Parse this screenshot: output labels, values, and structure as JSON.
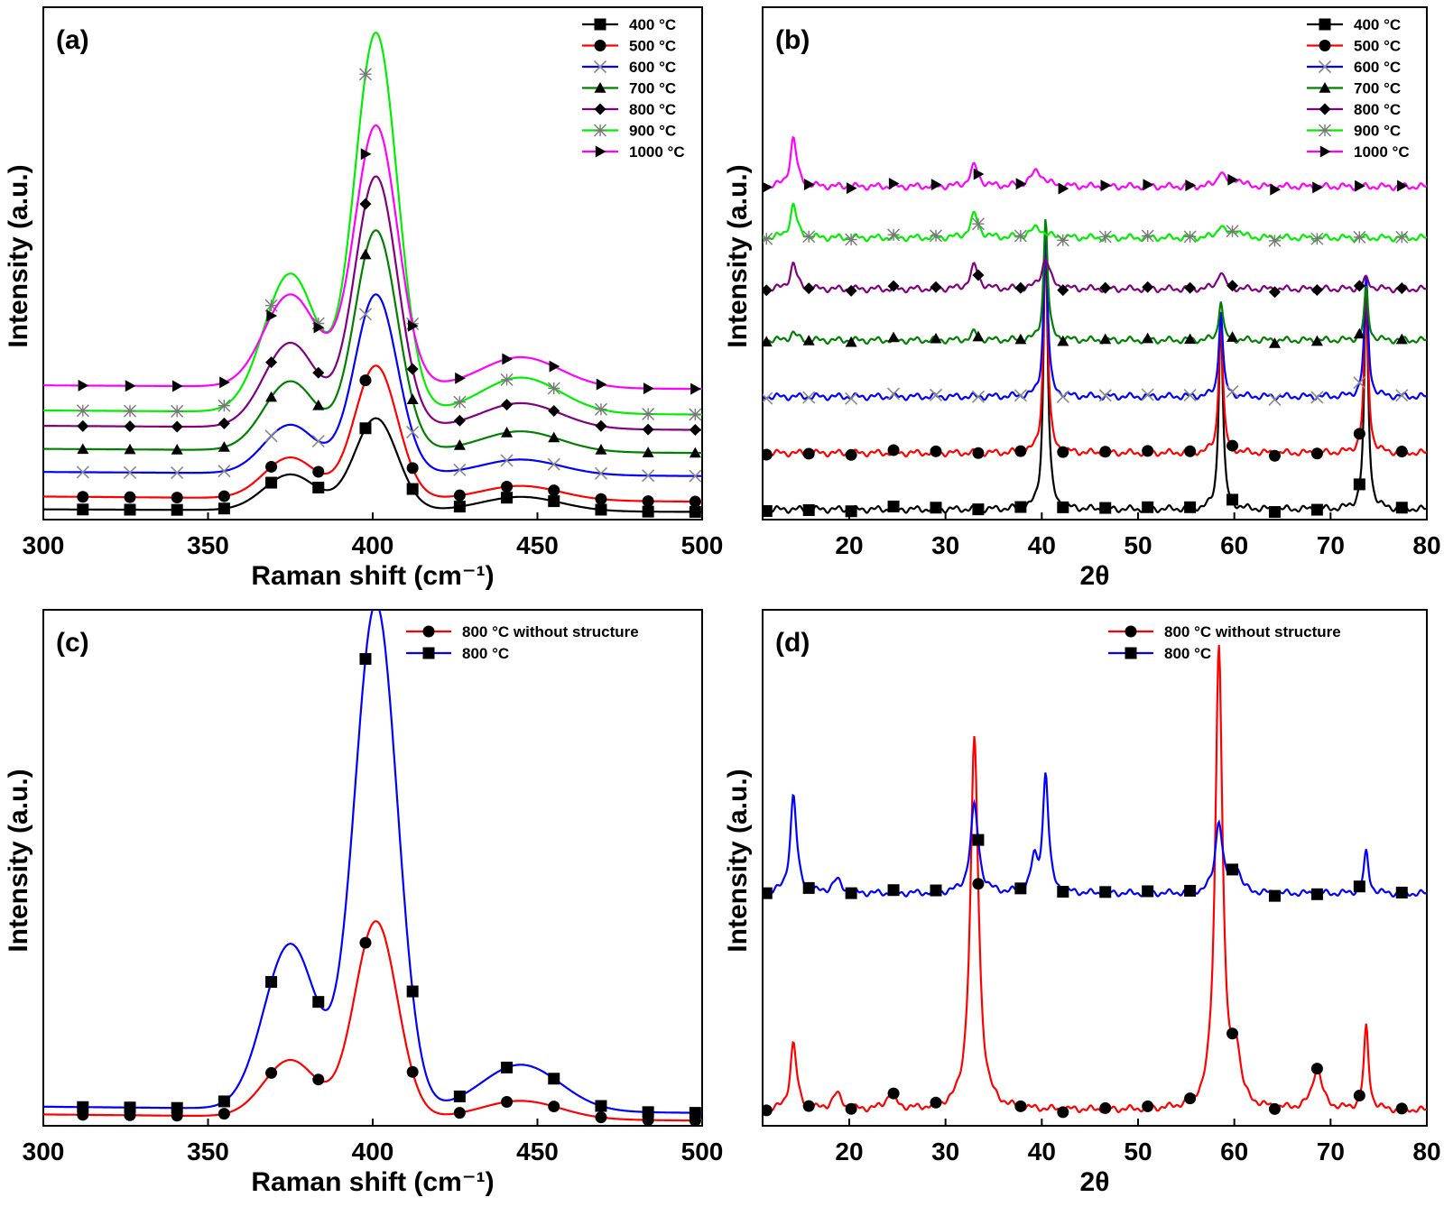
{
  "figure": {
    "panels": [
      "a",
      "b",
      "c",
      "d"
    ]
  },
  "chart_data": [
    {
      "panel": "(a)",
      "type": "line",
      "xlabel": "Raman shift (cm⁻¹)",
      "ylabel": "Intensity (a.u.)",
      "xlim": [
        300,
        500
      ],
      "ylim": [
        0,
        1
      ],
      "x_ticks": [
        "300",
        "350",
        "400",
        "450",
        "500"
      ],
      "y_ticks": [],
      "legend_position": "top-right",
      "peaks": [
        {
          "center": 375,
          "width": 8,
          "amp": 1
        },
        {
          "center": 401,
          "width": 6.5,
          "amp": 1
        },
        {
          "center": 445,
          "width": 12,
          "amp": 1
        }
      ],
      "series": [
        {
          "name": "400 °C",
          "color": "#000000",
          "marker": "square",
          "baseline": 0.015,
          "slope": 0.005,
          "heights": [
            0.07,
            0.18,
            0.028
          ]
        },
        {
          "name": "500 °C",
          "color": "#ff0000",
          "marker": "circle",
          "baseline": 0.035,
          "slope": 0.01,
          "heights": [
            0.08,
            0.26,
            0.028
          ]
        },
        {
          "name": "600 °C",
          "color": "#0000ff",
          "marker": "x",
          "baseline": 0.085,
          "slope": 0.008,
          "heights": [
            0.095,
            0.35,
            0.03
          ]
        },
        {
          "name": "700 °C",
          "color": "#008000",
          "marker": "triangle",
          "baseline": 0.13,
          "slope": 0.008,
          "heights": [
            0.135,
            0.43,
            0.04
          ]
        },
        {
          "name": "800 °C",
          "color": "#800080",
          "marker": "diamond",
          "baseline": 0.175,
          "slope": 0.008,
          "heights": [
            0.165,
            0.49,
            0.05
          ]
        },
        {
          "name": "900 °C",
          "color": "#00ee00",
          "marker": "star",
          "baseline": 0.205,
          "slope": 0.008,
          "heights": [
            0.27,
            0.74,
            0.07
          ]
        },
        {
          "name": "1000 °C",
          "color": "#ff00ff",
          "marker": "triangle-right",
          "baseline": 0.255,
          "slope": 0.007,
          "heights": [
            0.18,
            0.51,
            0.06
          ]
        }
      ]
    },
    {
      "panel": "(b)",
      "type": "line",
      "xlabel": "2θ",
      "ylabel": "Intensity (a.u.)",
      "xlim": [
        11,
        80
      ],
      "ylim": [
        0,
        1
      ],
      "x_ticks": [
        "20",
        "30",
        "40",
        "50",
        "60",
        "70",
        "80"
      ],
      "y_ticks": [],
      "legend_position": "top-right",
      "series": [
        {
          "name": "400 °C",
          "color": "#000000",
          "marker": "square",
          "offset": 0.02,
          "peaks": [
            {
              "center": 40.4,
              "height": 0.55,
              "width": 0.25
            },
            {
              "center": 58.6,
              "height": 0.38,
              "width": 0.25
            },
            {
              "center": 73.7,
              "height": 0.42,
              "width": 0.25
            }
          ]
        },
        {
          "name": "500 °C",
          "color": "#ff0000",
          "marker": "circle",
          "offset": 0.13,
          "peaks": [
            {
              "center": 40.4,
              "height": 0.44,
              "width": 0.25
            },
            {
              "center": 58.6,
              "height": 0.27,
              "width": 0.25
            },
            {
              "center": 73.7,
              "height": 0.32,
              "width": 0.25
            }
          ]
        },
        {
          "name": "600 °C",
          "color": "#0000ff",
          "marker": "x",
          "offset": 0.24,
          "peaks": [
            {
              "center": 40.4,
              "height": 0.33,
              "width": 0.25
            },
            {
              "center": 58.6,
              "height": 0.17,
              "width": 0.25
            },
            {
              "center": 73.7,
              "height": 0.23,
              "width": 0.25
            }
          ]
        },
        {
          "name": "700 °C",
          "color": "#008000",
          "marker": "triangle",
          "offset": 0.35,
          "peaks": [
            {
              "center": 14.2,
              "height": 0.015,
              "width": 0.4
            },
            {
              "center": 33,
              "height": 0.015,
              "width": 0.4
            },
            {
              "center": 40.4,
              "height": 0.24,
              "width": 0.25
            },
            {
              "center": 58.6,
              "height": 0.08,
              "width": 0.25
            },
            {
              "center": 73.7,
              "height": 0.1,
              "width": 0.25
            }
          ]
        },
        {
          "name": "800 °C",
          "color": "#800080",
          "marker": "diamond",
          "offset": 0.45,
          "peaks": [
            {
              "center": 14.2,
              "height": 0.05,
              "width": 0.4
            },
            {
              "center": 33,
              "height": 0.045,
              "width": 0.5
            },
            {
              "center": 40.4,
              "height": 0.06,
              "width": 0.5
            },
            {
              "center": 58.6,
              "height": 0.035,
              "width": 0.4
            },
            {
              "center": 73.7,
              "height": 0.02,
              "width": 0.4
            }
          ]
        },
        {
          "name": "900 °C",
          "color": "#00ee00",
          "marker": "star",
          "offset": 0.55,
          "peaks": [
            {
              "center": 14.2,
              "height": 0.065,
              "width": 0.4
            },
            {
              "center": 33,
              "height": 0.045,
              "width": 0.5
            },
            {
              "center": 39.5,
              "height": 0.02,
              "width": 0.8
            },
            {
              "center": 58.6,
              "height": 0.025,
              "width": 0.4
            },
            {
              "center": 60.3,
              "height": 0.015,
              "width": 0.5
            }
          ]
        },
        {
          "name": "1000 °C",
          "color": "#ff00ff",
          "marker": "triangle-right",
          "offset": 0.65,
          "peaks": [
            {
              "center": 14.2,
              "height": 0.095,
              "width": 0.4
            },
            {
              "center": 33,
              "height": 0.04,
              "width": 0.5
            },
            {
              "center": 39.5,
              "height": 0.03,
              "width": 0.8
            },
            {
              "center": 58.6,
              "height": 0.03,
              "width": 0.4
            },
            {
              "center": 60.3,
              "height": 0.015,
              "width": 0.5
            }
          ]
        }
      ]
    },
    {
      "panel": "(c)",
      "type": "line",
      "xlabel": "Raman shift (cm⁻¹)",
      "ylabel": "Intensity (a.u.)",
      "xlim": [
        300,
        500
      ],
      "ylim": [
        0,
        1
      ],
      "x_ticks": [
        "300",
        "350",
        "400",
        "450",
        "500"
      ],
      "y_ticks": [],
      "legend_position": "top-right",
      "peaks": [
        {
          "center": 375,
          "width": 8,
          "amp": 1
        },
        {
          "center": 401,
          "width": 6.5,
          "amp": 1
        },
        {
          "center": 445,
          "width": 12,
          "amp": 1
        }
      ],
      "series": [
        {
          "name": "800 °C without structure",
          "color": "#ff0000",
          "marker": "circle",
          "baseline": 0.01,
          "slope": 0.012,
          "heights": [
            0.11,
            0.38,
            0.035
          ]
        },
        {
          "name": "800 °C",
          "color": "#0000ff",
          "marker": "square",
          "baseline": 0.025,
          "slope": 0.012,
          "heights": [
            0.32,
            0.98,
            0.09
          ]
        }
      ]
    },
    {
      "panel": "(d)",
      "type": "line",
      "xlabel": "2θ",
      "ylabel": "Intensity (a.u.)",
      "xlim": [
        11,
        80
      ],
      "ylim": [
        0,
        1
      ],
      "x_ticks": [
        "20",
        "30",
        "40",
        "50",
        "60",
        "70",
        "80"
      ],
      "y_ticks": [],
      "legend_position": "top-right",
      "series": [
        {
          "name": "800 °C without structure",
          "color": "#ff0000",
          "marker": "circle",
          "offset": 0.03,
          "peaks": [
            {
              "center": 14.2,
              "height": 0.13,
              "width": 0.4
            },
            {
              "center": 18.7,
              "height": 0.03,
              "width": 0.6
            },
            {
              "center": 24.3,
              "height": 0.03,
              "width": 0.6
            },
            {
              "center": 33,
              "height": 0.72,
              "width": 0.5
            },
            {
              "center": 58.4,
              "height": 0.9,
              "width": 0.45
            },
            {
              "center": 60.2,
              "height": 0.1,
              "width": 0.5
            },
            {
              "center": 68.6,
              "height": 0.08,
              "width": 0.6
            },
            {
              "center": 73.7,
              "height": 0.16,
              "width": 0.3
            }
          ]
        },
        {
          "name": "800 °C",
          "color": "#0000ff",
          "marker": "square",
          "offset": 0.45,
          "peaks": [
            {
              "center": 14.2,
              "height": 0.19,
              "width": 0.4
            },
            {
              "center": 18.7,
              "height": 0.025,
              "width": 0.6
            },
            {
              "center": 33,
              "height": 0.17,
              "width": 0.5
            },
            {
              "center": 39.2,
              "height": 0.06,
              "width": 0.4
            },
            {
              "center": 40.4,
              "height": 0.23,
              "width": 0.35
            },
            {
              "center": 58.4,
              "height": 0.14,
              "width": 0.45
            },
            {
              "center": 60.2,
              "height": 0.05,
              "width": 0.5
            },
            {
              "center": 73.7,
              "height": 0.08,
              "width": 0.3
            }
          ]
        }
      ]
    }
  ]
}
